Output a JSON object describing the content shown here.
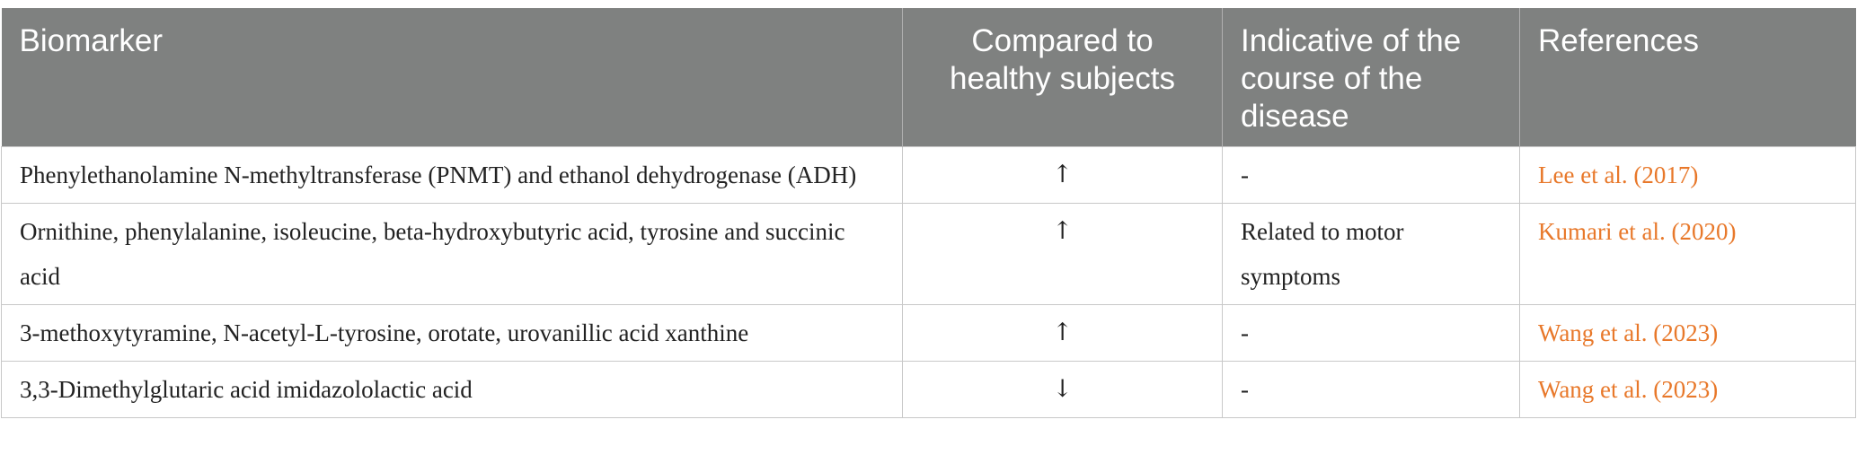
{
  "table": {
    "header": [
      "Biomarker",
      "Compared to healthy subjects",
      "Indicative of the course of the disease",
      "References"
    ],
    "rows": [
      [
        "Phenylethanolamine N-methyltransferase (PNMT) and ethanol dehydrogenase (ADH)",
        "↑",
        "-",
        "Lee et al. (2017)"
      ],
      [
        "Ornithine, phenylalanine, isoleucine, beta-hydroxybutyric acid, tyrosine and succinic acid",
        "↑",
        "Related to motor symptoms",
        "Kumari et al. (2020)"
      ],
      [
        "3-methoxytyramine, N-acetyl-L-tyrosine, orotate, urovanillic acid xanthine",
        "↑",
        "-",
        "Wang et al. (2023)"
      ],
      [
        "3,3-Dimethylglutaric acid imidazololactic acid",
        "↓",
        "-",
        "Wang et al. (2023)"
      ]
    ]
  }
}
